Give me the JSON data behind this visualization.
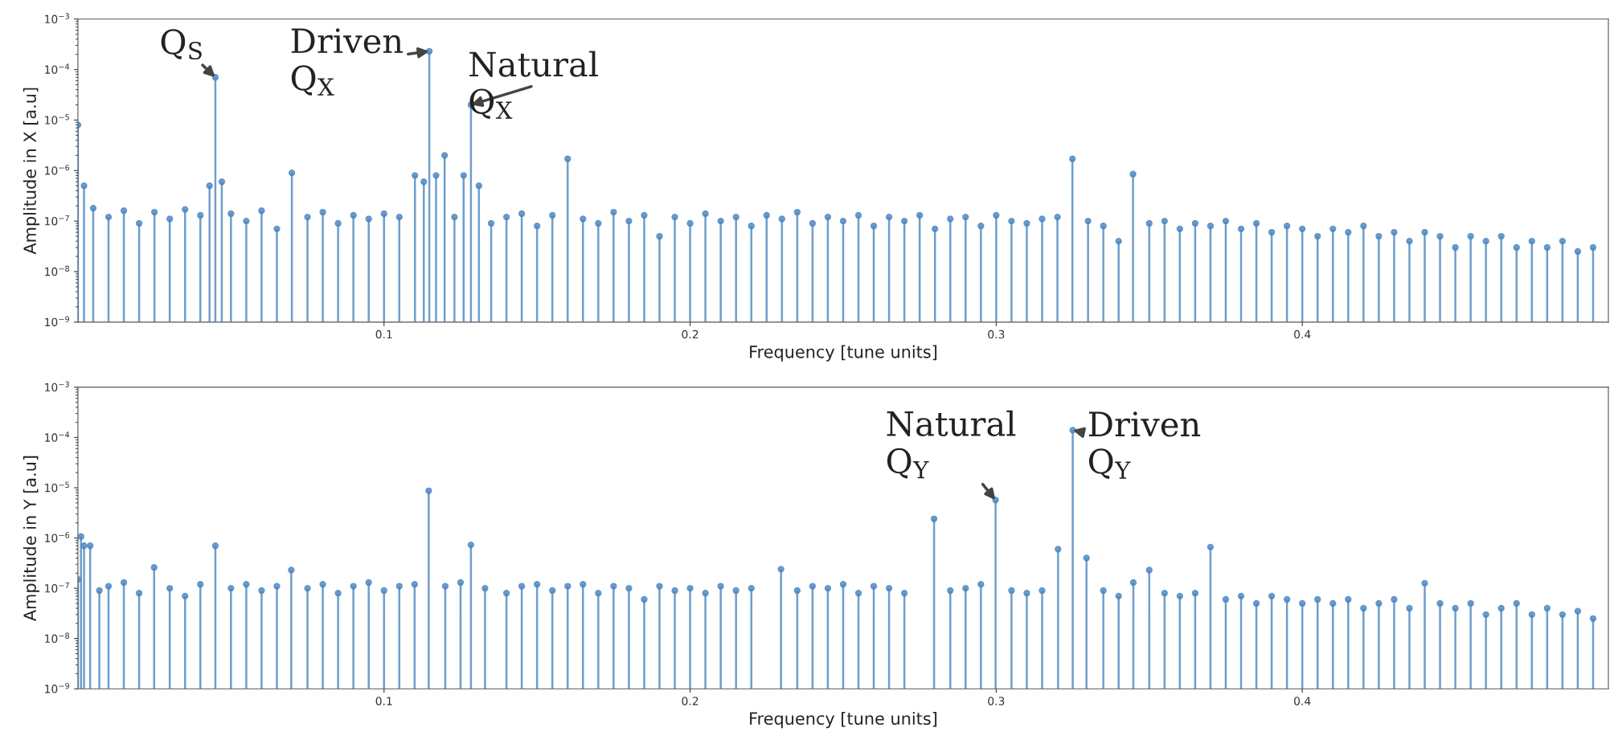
{
  "chart_data": [
    {
      "type": "lollipop",
      "xlabel": "Frequency [tune units]",
      "ylabel": "Amplitude in X [a.u]",
      "log": "y",
      "marker": "circle",
      "grid": false,
      "xlim": [
        0,
        0.5
      ],
      "xticks": [
        0.1,
        0.2,
        0.3,
        0.4
      ],
      "ylim": [
        1e-09,
        0.001
      ],
      "yticks": [
        {
          "value": 1e-09,
          "label": "10$^{−9}$"
        },
        {
          "value": 1e-08,
          "label": "10$^{−8}$"
        },
        {
          "value": 1e-07,
          "label": "10$^{−7}$"
        },
        {
          "value": 1e-06,
          "label": "10$^{−6}$"
        },
        {
          "value": 1e-05,
          "label": "10$^{−5}$"
        },
        {
          "value": 0.0001,
          "label": "10$^{−4}$"
        },
        {
          "value": 0.001,
          "label": "10$^{−3}$"
        }
      ],
      "annotations": [
        {
          "text": "Q$_{S}$",
          "x": 0.0449,
          "y": 7e-05
        },
        {
          "text": "Driven\nQ$_{X}$",
          "x": 0.1148,
          "y": 0.00023
        },
        {
          "text": "Natural\nQ$_{X}$",
          "x": 0.1284,
          "y": 2e-05
        }
      ],
      "series": [
        {
          "color": "#4a86c0",
          "x": [
            0.0,
            0.002,
            0.005,
            0.01,
            0.015,
            0.02,
            0.025,
            0.03,
            0.035,
            0.04,
            0.043,
            0.0449,
            0.047,
            0.05,
            0.055,
            0.06,
            0.065,
            0.0699,
            0.075,
            0.08,
            0.085,
            0.09,
            0.095,
            0.1,
            0.105,
            0.1101,
            0.113,
            0.1148,
            0.117,
            0.1198,
            0.123,
            0.126,
            0.1284,
            0.131,
            0.135,
            0.14,
            0.145,
            0.15,
            0.155,
            0.16,
            0.165,
            0.17,
            0.175,
            0.18,
            0.185,
            0.19,
            0.195,
            0.2,
            0.205,
            0.21,
            0.215,
            0.22,
            0.225,
            0.23,
            0.235,
            0.24,
            0.245,
            0.25,
            0.255,
            0.26,
            0.265,
            0.27,
            0.275,
            0.28,
            0.285,
            0.29,
            0.295,
            0.3,
            0.305,
            0.31,
            0.315,
            0.32,
            0.3249,
            0.33,
            0.335,
            0.34,
            0.3447,
            0.35,
            0.355,
            0.36,
            0.365,
            0.37,
            0.375,
            0.38,
            0.385,
            0.39,
            0.395,
            0.4,
            0.405,
            0.41,
            0.415,
            0.42,
            0.425,
            0.43,
            0.435,
            0.44,
            0.445,
            0.45,
            0.455,
            0.46,
            0.465,
            0.47,
            0.475,
            0.48,
            0.485,
            0.49,
            0.495
          ],
          "values": [
            8e-06,
            5e-07,
            1.8e-07,
            1.2e-07,
            1.6e-07,
            9e-08,
            1.5e-07,
            1.1e-07,
            1.7e-07,
            1.3e-07,
            5e-07,
            7e-05,
            6e-07,
            1.4e-07,
            1e-07,
            1.6e-07,
            7e-08,
            9e-07,
            1.2e-07,
            1.5e-07,
            9e-08,
            1.3e-07,
            1.1e-07,
            1.4e-07,
            1.2e-07,
            8e-07,
            6e-07,
            0.00023,
            8e-07,
            2e-06,
            1.2e-07,
            8e-07,
            2e-05,
            5e-07,
            9e-08,
            1.2e-07,
            1.4e-07,
            8e-08,
            1.3e-07,
            1.7e-06,
            1.1e-07,
            9e-08,
            1.5e-07,
            1e-07,
            1.3e-07,
            5e-08,
            1.2e-07,
            9e-08,
            1.4e-07,
            1e-07,
            1.2e-07,
            8e-08,
            1.3e-07,
            1.1e-07,
            1.5e-07,
            9e-08,
            1.2e-07,
            1e-07,
            1.3e-07,
            8e-08,
            1.2e-07,
            1e-07,
            1.3e-07,
            7e-08,
            1.1e-07,
            1.2e-07,
            8e-08,
            1.3e-07,
            1e-07,
            9e-08,
            1.1e-07,
            1.2e-07,
            1.7e-06,
            1e-07,
            8e-08,
            4e-08,
            8.5e-07,
            9e-08,
            1e-07,
            7e-08,
            9e-08,
            8e-08,
            1e-07,
            7e-08,
            9e-08,
            6e-08,
            8e-08,
            7e-08,
            5e-08,
            7e-08,
            6e-08,
            8e-08,
            5e-08,
            6e-08,
            4e-08,
            6e-08,
            5e-08,
            3e-08,
            5e-08,
            4e-08,
            5e-08,
            3e-08,
            4e-08,
            3e-08,
            4e-08,
            2.5e-08,
            3e-08
          ]
        }
      ]
    },
    {
      "type": "lollipop",
      "xlabel": "Frequency [tune units]",
      "ylabel": "Amplitude in Y [a.u]",
      "log": "y",
      "marker": "circle",
      "grid": false,
      "xlim": [
        0,
        0.5
      ],
      "xticks": [
        0.1,
        0.2,
        0.3,
        0.4
      ],
      "ylim": [
        1e-09,
        0.001
      ],
      "yticks": [
        {
          "value": 1e-09,
          "label": "10$^{−9}$"
        },
        {
          "value": 1e-08,
          "label": "10$^{−8}$"
        },
        {
          "value": 1e-07,
          "label": "10$^{−7}$"
        },
        {
          "value": 1e-06,
          "label": "10$^{−6}$"
        },
        {
          "value": 1e-05,
          "label": "10$^{−5}$"
        },
        {
          "value": 0.0001,
          "label": "10$^{−4}$"
        },
        {
          "value": 0.001,
          "label": "10$^{−3}$"
        }
      ],
      "annotations": [
        {
          "text": "Natural\nQ$_{Y}$",
          "x": 0.2998,
          "y": 5.7e-06
        },
        {
          "text": "Driven\nQ$_{Y}$",
          "x": 0.325,
          "y": 0.00014
        }
      ],
      "series": [
        {
          "color": "#4a86c0",
          "x": [
            0.0,
            0.001,
            0.002,
            0.004,
            0.007,
            0.01,
            0.015,
            0.02,
            0.0249,
            0.03,
            0.035,
            0.04,
            0.0449,
            0.05,
            0.055,
            0.06,
            0.065,
            0.0697,
            0.075,
            0.08,
            0.085,
            0.09,
            0.095,
            0.1,
            0.105,
            0.11,
            0.1146,
            0.12,
            0.125,
            0.1284,
            0.133,
            0.14,
            0.145,
            0.15,
            0.155,
            0.16,
            0.165,
            0.17,
            0.175,
            0.18,
            0.185,
            0.19,
            0.195,
            0.2,
            0.205,
            0.21,
            0.215,
            0.22,
            0.2297,
            0.235,
            0.24,
            0.245,
            0.25,
            0.255,
            0.26,
            0.265,
            0.27,
            0.2797,
            0.285,
            0.29,
            0.295,
            0.2998,
            0.305,
            0.31,
            0.315,
            0.3202,
            0.325,
            0.3295,
            0.335,
            0.34,
            0.3448,
            0.35,
            0.355,
            0.36,
            0.365,
            0.37,
            0.375,
            0.38,
            0.385,
            0.39,
            0.395,
            0.4,
            0.405,
            0.41,
            0.415,
            0.42,
            0.425,
            0.43,
            0.435,
            0.44,
            0.445,
            0.45,
            0.455,
            0.46,
            0.465,
            0.47,
            0.475,
            0.48,
            0.485,
            0.49,
            0.495
          ],
          "values": [
            1.5e-07,
            1.07e-06,
            7e-07,
            7e-07,
            9e-08,
            1.1e-07,
            1.3e-07,
            8e-08,
            2.6e-07,
            1e-07,
            7e-08,
            1.2e-07,
            7e-07,
            1e-07,
            1.2e-07,
            9e-08,
            1.1e-07,
            2.3e-07,
            1e-07,
            1.2e-07,
            8e-08,
            1.1e-07,
            1.3e-07,
            9e-08,
            1.1e-07,
            1.2e-07,
            8.7e-06,
            1.1e-07,
            1.3e-07,
            7.3e-07,
            1e-07,
            8e-08,
            1.1e-07,
            1.2e-07,
            9e-08,
            1.1e-07,
            1.2e-07,
            8e-08,
            1.1e-07,
            1e-07,
            6e-08,
            1.1e-07,
            9e-08,
            1e-07,
            8e-08,
            1.1e-07,
            9e-08,
            1e-07,
            2.4e-07,
            9e-08,
            1.1e-07,
            1e-07,
            1.2e-07,
            8e-08,
            1.1e-07,
            1e-07,
            8e-08,
            2.4e-06,
            9e-08,
            1e-07,
            1.2e-07,
            5.7e-06,
            9e-08,
            8e-08,
            9e-08,
            6e-07,
            0.00014,
            4e-07,
            9e-08,
            7e-08,
            1.3e-07,
            2.3e-07,
            8e-08,
            7e-08,
            8e-08,
            6.6e-07,
            6e-08,
            7e-08,
            5e-08,
            7e-08,
            6e-08,
            5e-08,
            6e-08,
            5e-08,
            6e-08,
            4e-08,
            5e-08,
            6e-08,
            4e-08,
            1.26e-07,
            5e-08,
            4e-08,
            5e-08,
            3e-08,
            4e-08,
            5e-08,
            3e-08,
            4e-08,
            3e-08,
            3.5e-08,
            2.5e-08
          ]
        }
      ]
    }
  ]
}
